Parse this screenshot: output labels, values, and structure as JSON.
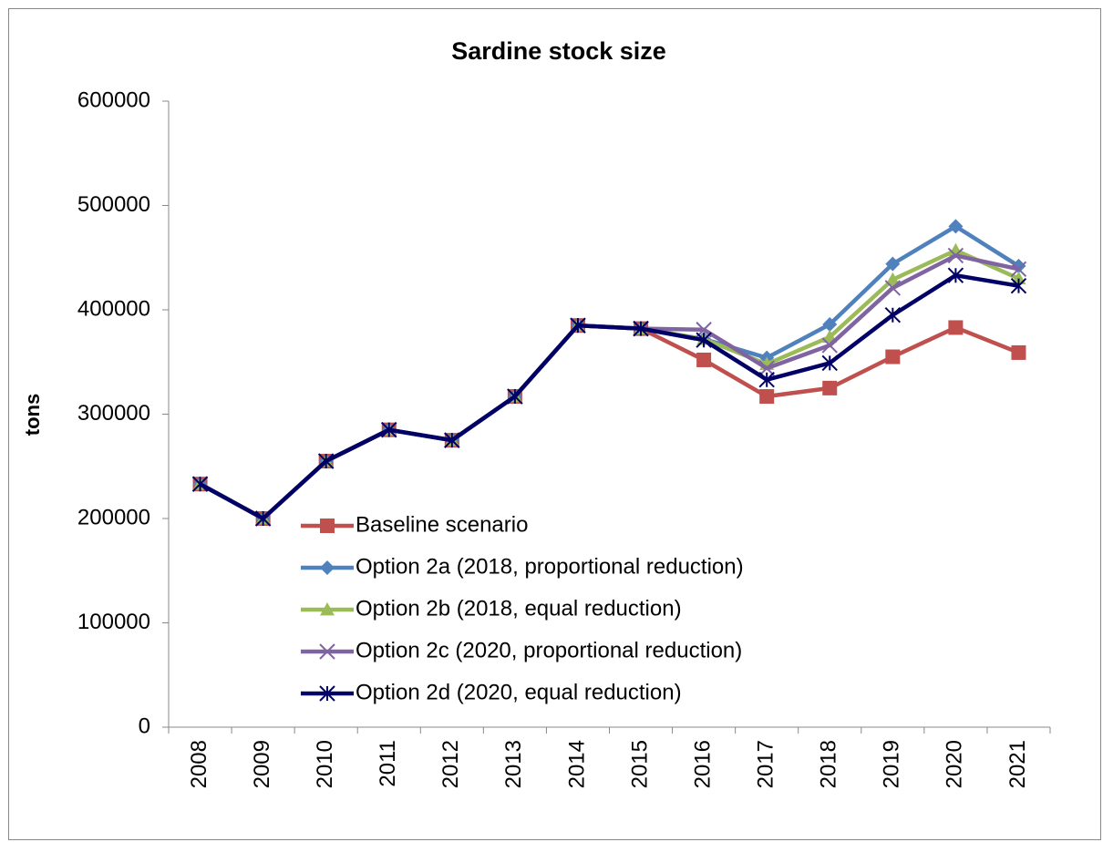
{
  "chart_data": {
    "type": "line",
    "title": "Sardine stock size",
    "y_label": "tons",
    "categories": [
      "2008",
      "2009",
      "2010",
      "2011",
      "2012",
      "2013",
      "2014",
      "2015",
      "2016",
      "2017",
      "2018",
      "2019",
      "2020",
      "2021"
    ],
    "series": [
      {
        "name": "Baseline scenario",
        "color": "#c0504d",
        "marker": "square",
        "values": [
          233000,
          200000,
          255000,
          285000,
          275000,
          317000,
          385000,
          382000,
          352000,
          317000,
          325000,
          355000,
          383000,
          359000
        ]
      },
      {
        "name": "Option 2a (2018, proportional reduction)",
        "color": "#4f81bd",
        "marker": "diamond",
        "values": [
          233000,
          200000,
          255000,
          285000,
          275000,
          317000,
          385000,
          382000,
          372000,
          354000,
          386000,
          444000,
          480000,
          442000
        ]
      },
      {
        "name": "Option 2b (2018, equal reduction)",
        "color": "#9bbb59",
        "marker": "triangle",
        "values": [
          233000,
          200000,
          255000,
          285000,
          275000,
          317000,
          385000,
          382000,
          372000,
          348000,
          374000,
          429000,
          457000,
          430000
        ]
      },
      {
        "name": "Option 2c (2020, proportional reduction)",
        "color": "#8064a2",
        "marker": "x",
        "values": [
          233000,
          200000,
          255000,
          285000,
          275000,
          317000,
          385000,
          382000,
          381000,
          344000,
          366000,
          421000,
          452000,
          439000
        ]
      },
      {
        "name": "Option 2d (2020, equal reduction)",
        "color": "#000066",
        "marker": "asterisk",
        "values": [
          233000,
          200000,
          255000,
          285000,
          275000,
          317000,
          385000,
          382000,
          371000,
          333000,
          349000,
          395000,
          433000,
          423000
        ]
      }
    ],
    "ylim": [
      0,
      600000
    ],
    "yticks": [
      0,
      100000,
      200000,
      300000,
      400000,
      500000,
      600000
    ],
    "grid": false
  }
}
